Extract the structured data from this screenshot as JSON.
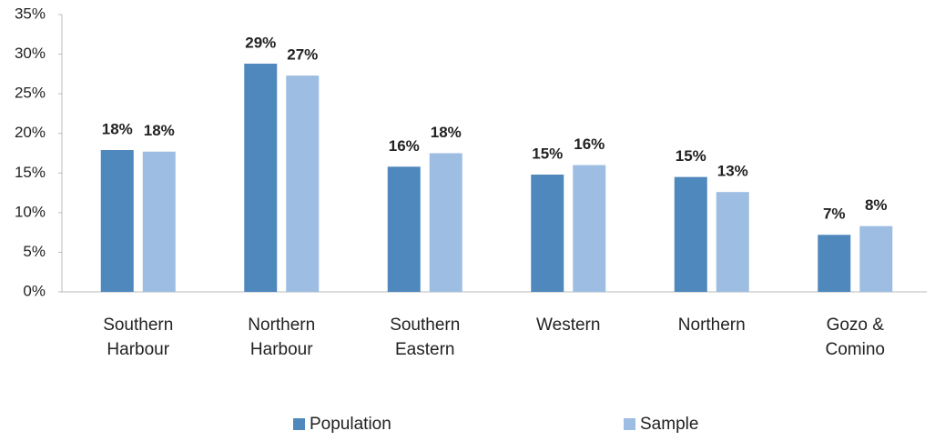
{
  "chart_data": {
    "type": "bar",
    "categories": [
      "Southern Harbour",
      "Northern Harbour",
      "Southern Eastern",
      "Western",
      "Northern",
      "Gozo & Comino"
    ],
    "series": [
      {
        "name": "Population",
        "color": "#4f88bd",
        "values": [
          17.9,
          28.8,
          15.8,
          14.8,
          14.5,
          7.2
        ],
        "value_labels": [
          "18%",
          "29%",
          "16%",
          "15%",
          "15%",
          "7%"
        ]
      },
      {
        "name": "Sample",
        "color": "#9dbde2",
        "values": [
          17.7,
          27.3,
          17.5,
          16.0,
          12.6,
          8.3
        ],
        "value_labels": [
          "18%",
          "27%",
          "18%",
          "16%",
          "13%",
          "8%"
        ]
      }
    ],
    "ylim": [
      0,
      35
    ],
    "yticks": [
      {
        "value": 0,
        "label": "0%"
      },
      {
        "value": 5,
        "label": "5%"
      },
      {
        "value": 10,
        "label": "10%"
      },
      {
        "value": 15,
        "label": "15%"
      },
      {
        "value": 20,
        "label": "20%"
      },
      {
        "value": 25,
        "label": "25%"
      },
      {
        "value": 30,
        "label": "30%"
      },
      {
        "value": 35,
        "label": "35%"
      }
    ],
    "grid": false,
    "legend": "bottom"
  }
}
